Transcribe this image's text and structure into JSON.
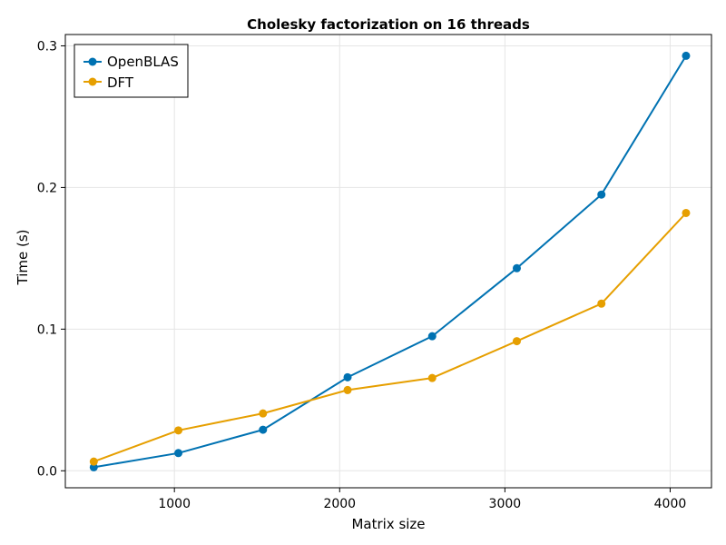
{
  "chart_data": {
    "type": "line",
    "title": "Cholesky factorization on 16 threads",
    "xlabel": "Matrix size",
    "ylabel": "Time (s)",
    "xlim": [
      340,
      4250
    ],
    "ylim": [
      -0.012,
      0.308
    ],
    "xticks": [
      1000,
      2000,
      3000,
      4000
    ],
    "yticks": [
      0.0,
      0.1,
      0.2,
      0.3
    ],
    "xtick_labels": [
      "1000",
      "2000",
      "3000",
      "4000"
    ],
    "ytick_labels": [
      "0.0",
      "0.1",
      "0.2",
      "0.3"
    ],
    "grid": true,
    "legend_position": "top-left",
    "x": [
      512,
      1024,
      1536,
      2048,
      2560,
      3072,
      3584,
      4096
    ],
    "series": [
      {
        "name": "OpenBLAS",
        "color": "#0072b2",
        "values": [
          0.0025,
          0.0125,
          0.029,
          0.066,
          0.095,
          0.143,
          0.195,
          0.293
        ]
      },
      {
        "name": "DFT",
        "color": "#e69f00",
        "values": [
          0.0065,
          0.0285,
          0.0405,
          0.057,
          0.0655,
          0.0915,
          0.118,
          0.182
        ]
      }
    ]
  }
}
